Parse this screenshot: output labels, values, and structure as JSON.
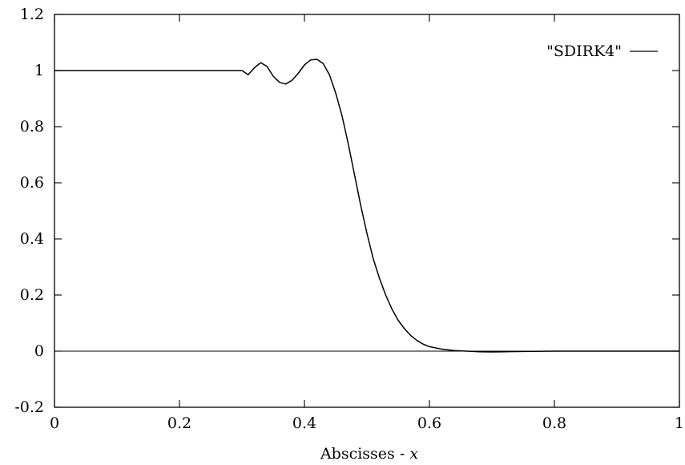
{
  "chart_data": {
    "type": "line",
    "title": "",
    "xlabel": "Abscisses - ",
    "xlabel_var": "x",
    "ylabel": "",
    "xlim": [
      0,
      1
    ],
    "ylim": [
      -0.2,
      1.2
    ],
    "x_ticks": [
      0,
      0.2,
      0.4,
      0.6,
      0.8,
      1
    ],
    "x_tick_labels": [
      "0",
      "0.2",
      "0.4",
      "0.6",
      "0.8",
      "1"
    ],
    "y_ticks": [
      -0.2,
      0,
      0.2,
      0.4,
      0.6,
      0.8,
      1,
      1.2
    ],
    "y_tick_labels": [
      "-0.2",
      "0",
      "0.2",
      "0.4",
      "0.6",
      "0.8",
      "1",
      "1.2"
    ],
    "grid": false,
    "legend_position": "top-right",
    "zero_line": true,
    "series": [
      {
        "name": "\"SDIRK4\"",
        "color": "#000000",
        "x": [
          0,
          0.1,
          0.2,
          0.3,
          0.31,
          0.32,
          0.33,
          0.34,
          0.35,
          0.36,
          0.37,
          0.38,
          0.39,
          0.4,
          0.41,
          0.42,
          0.43,
          0.44,
          0.45,
          0.46,
          0.47,
          0.48,
          0.49,
          0.5,
          0.51,
          0.52,
          0.53,
          0.54,
          0.55,
          0.56,
          0.57,
          0.58,
          0.59,
          0.6,
          0.62,
          0.64,
          0.66,
          0.68,
          0.7,
          0.72,
          0.75,
          0.8,
          0.9,
          1.0
        ],
        "y": [
          1,
          1,
          1,
          1,
          0.985,
          1.01,
          1.028,
          1.015,
          0.98,
          0.958,
          0.952,
          0.965,
          0.99,
          1.02,
          1.038,
          1.04,
          1.025,
          0.985,
          0.92,
          0.84,
          0.74,
          0.63,
          0.52,
          0.42,
          0.33,
          0.26,
          0.2,
          0.15,
          0.11,
          0.08,
          0.056,
          0.038,
          0.025,
          0.016,
          0.007,
          0.002,
          0.0,
          -0.002,
          -0.003,
          -0.002,
          -0.001,
          0,
          0,
          0
        ]
      }
    ]
  }
}
